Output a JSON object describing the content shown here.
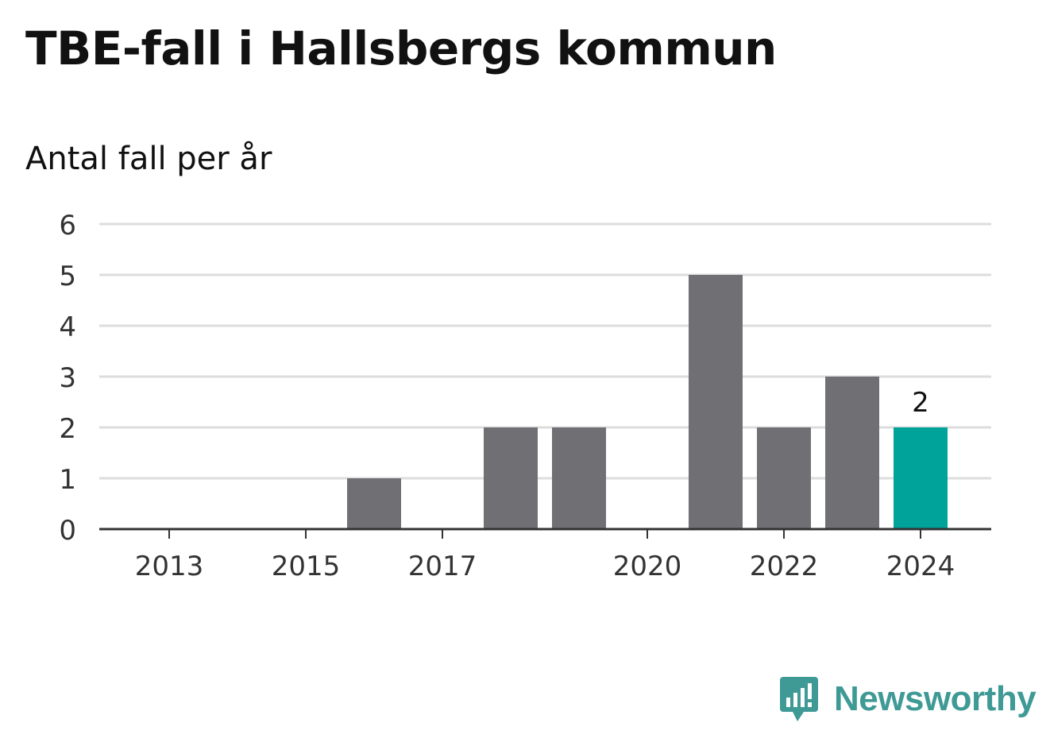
{
  "chart_data": {
    "type": "bar",
    "title": "TBE-fall i Hallsbergs kommun",
    "subtitle": "Antal fall per år",
    "categories": [
      "2013",
      "2014",
      "2015",
      "2016",
      "2017",
      "2018",
      "2019",
      "2020",
      "2021",
      "2022",
      "2023",
      "2024"
    ],
    "values": [
      0,
      0,
      0,
      1,
      0,
      2,
      2,
      0,
      5,
      2,
      3,
      2
    ],
    "x_tick_labels": [
      "2013",
      "2015",
      "2017",
      "2020",
      "2022",
      "2024"
    ],
    "y_ticks": [
      0,
      1,
      2,
      3,
      4,
      5,
      6
    ],
    "ylim": [
      0,
      6
    ],
    "grid": true,
    "highlight": {
      "category": "2024",
      "label": "2"
    },
    "colors": {
      "bar": "#706f74",
      "highlight": "#00a39a",
      "grid": "#dddddd",
      "axis": "#333333"
    }
  },
  "brand": {
    "name": "Newsworthy",
    "icon": "newsworthy-logo-icon",
    "color": "#3f9a96"
  }
}
